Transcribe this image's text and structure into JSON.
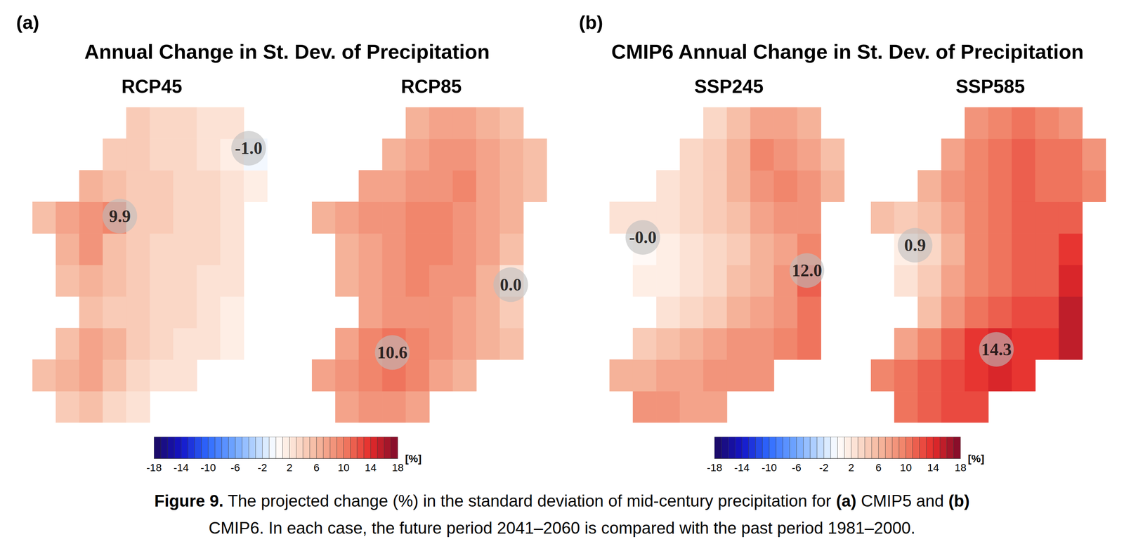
{
  "chart_data": [
    {
      "type": "heatmap",
      "label": "(a)",
      "title": "Annual Change in St. Dev. of Precipitation",
      "colorbar": {
        "range": [
          -18,
          18
        ],
        "ticks": [
          -18,
          -14,
          -10,
          -6,
          -2,
          2,
          6,
          10,
          14,
          18
        ],
        "levels": [
          -18,
          -17,
          -16,
          -15,
          -14,
          -13,
          -12,
          -11,
          -10,
          -9,
          -8,
          -7,
          -6,
          -5,
          -4,
          -3,
          -2,
          -1,
          0,
          1,
          2,
          3,
          4,
          5,
          6,
          7,
          8,
          9,
          10,
          11,
          12,
          13,
          14,
          15,
          16,
          17,
          18
        ],
        "label": "[%]"
      },
      "maps": [
        {
          "title": "RCP45",
          "lon": [
            -10.25,
            -9.75,
            -9.25,
            -8.75,
            -8.25,
            -7.75,
            -7.25,
            -6.75,
            -6.25,
            -5.75
          ],
          "lat": [
            51.6,
            52.0,
            52.4,
            52.8,
            53.2,
            53.6,
            54.0,
            54.4,
            54.8,
            55.2
          ],
          "cells": [
            [
              null,
              4,
              5,
              3,
              2,
              null,
              null,
              null,
              null,
              null
            ],
            [
              5,
              6,
              7,
              5,
              3,
              2,
              2,
              null,
              null,
              null
            ],
            [
              null,
              5,
              7,
              6,
              4,
              3,
              2,
              2,
              1,
              null
            ],
            [
              null,
              null,
              5,
              4,
              4,
              3,
              3,
              2,
              1,
              null
            ],
            [
              null,
              5,
              6,
              5,
              4,
              3,
              3,
              2,
              2,
              null
            ],
            [
              null,
              6,
              8,
              5,
              4,
              3,
              3,
              3,
              2,
              null
            ],
            [
              5,
              7,
              8,
              9,
              4,
              4,
              3,
              3,
              2,
              null
            ],
            [
              null,
              null,
              6,
              5,
              4,
              4,
              3,
              3,
              2,
              1
            ],
            [
              null,
              null,
              null,
              4,
              4,
              3,
              3,
              2,
              1,
              -1
            ],
            [
              null,
              null,
              null,
              null,
              4,
              3,
              3,
              2,
              2,
              null
            ]
          ],
          "markers": {
            "lon": [
              -5.9,
              -8.64
            ],
            "lat": [
              54.88,
              54.02
            ],
            "values": [
              -1.0,
              9.9
            ],
            "value_labels": [
              "-1.0",
              "9.9"
            ]
          }
        },
        {
          "title": "RCP85",
          "lon": [
            -10.25,
            -9.75,
            -9.25,
            -8.75,
            -8.25,
            -7.75,
            -7.25,
            -6.75,
            -6.25,
            -5.75
          ],
          "lat": [
            51.6,
            52.0,
            52.4,
            52.8,
            53.2,
            53.6,
            54.0,
            54.4,
            54.8,
            55.2
          ],
          "cells": [
            [
              null,
              7,
              8,
              8,
              7,
              null,
              null,
              null,
              null,
              null
            ],
            [
              7,
              8,
              9,
              10,
              9,
              7,
              6,
              null,
              null,
              null
            ],
            [
              null,
              7,
              9,
              10,
              9,
              8,
              7,
              6,
              5,
              null
            ],
            [
              null,
              null,
              7,
              8,
              8,
              8,
              7,
              6,
              4,
              null
            ],
            [
              null,
              6,
              7,
              8,
              9,
              8,
              8,
              6,
              2,
              null
            ],
            [
              null,
              6,
              7,
              8,
              9,
              9,
              8,
              7,
              5,
              null
            ],
            [
              6,
              7,
              8,
              8,
              9,
              9,
              8,
              7,
              6,
              null
            ],
            [
              null,
              null,
              7,
              7,
              8,
              8,
              9,
              7,
              6,
              5
            ],
            [
              null,
              null,
              null,
              6,
              7,
              8,
              8,
              7,
              6,
              5
            ],
            [
              null,
              null,
              null,
              null,
              6,
              7,
              7,
              6,
              5,
              null
            ]
          ],
          "markers": {
            "lon": [
              -6.27,
              -8.79
            ],
            "lat": [
              53.15,
              52.29
            ],
            "values": [
              0.0,
              10.6
            ],
            "value_labels": [
              "0.0",
              "10.6"
            ]
          }
        }
      ]
    },
    {
      "type": "heatmap",
      "label": "(b)",
      "title": "CMIP6 Annual Change in St. Dev. of Precipitation",
      "colorbar": {
        "range": [
          -18,
          18
        ],
        "ticks": [
          -18,
          -14,
          -10,
          -6,
          -2,
          2,
          6,
          10,
          14,
          18
        ],
        "levels": [
          -18,
          -17,
          -16,
          -15,
          -14,
          -13,
          -12,
          -11,
          -10,
          -9,
          -8,
          -7,
          -6,
          -5,
          -4,
          -3,
          -2,
          -1,
          0,
          1,
          2,
          3,
          4,
          5,
          6,
          7,
          8,
          9,
          10,
          11,
          12,
          13,
          14,
          15,
          16,
          17,
          18
        ],
        "label": "[%]"
      },
      "maps": [
        {
          "title": "SSP245",
          "lon": [
            -10.25,
            -9.75,
            -9.25,
            -8.75,
            -8.25,
            -7.75,
            -7.25,
            -6.75,
            -6.25,
            -5.75
          ],
          "lat": [
            51.6,
            52.0,
            52.4,
            52.8,
            53.2,
            53.6,
            54.0,
            54.4,
            54.8,
            55.2
          ],
          "cells": [
            [
              null,
              8,
              8,
              7,
              7,
              null,
              null,
              null,
              null,
              null
            ],
            [
              6,
              6,
              7,
              7,
              8,
              8,
              8,
              null,
              null,
              null
            ],
            [
              null,
              4,
              5,
              6,
              7,
              8,
              8,
              9,
              10,
              null
            ],
            [
              null,
              null,
              2,
              3,
              4,
              6,
              7,
              8,
              10,
              null
            ],
            [
              null,
              1,
              1,
              2,
              3,
              5,
              6,
              8,
              11,
              null
            ],
            [
              null,
              0,
              1,
              2,
              3,
              4,
              6,
              7,
              9,
              null
            ],
            [
              2,
              2,
              2,
              3,
              4,
              5,
              7,
              8,
              8,
              null
            ],
            [
              null,
              null,
              2,
              3,
              4,
              6,
              8,
              9,
              8,
              6
            ],
            [
              null,
              null,
              null,
              3,
              4,
              6,
              9,
              8,
              7,
              5
            ],
            [
              null,
              null,
              null,
              null,
              3,
              5,
              7,
              7,
              6,
              null
            ]
          ],
          "markers": {
            "lon": [
              -9.79,
              -6.3
            ],
            "lat": [
              53.75,
              53.33
            ],
            "values": [
              0.0,
              12.0
            ],
            "value_labels": [
              "-0.0",
              "12.0"
            ]
          }
        },
        {
          "title": "SSP585",
          "lon": [
            -10.25,
            -9.75,
            -9.25,
            -8.75,
            -8.25,
            -7.75,
            -7.25,
            -6.75,
            -6.25,
            -5.75
          ],
          "lat": [
            51.6,
            52.0,
            52.4,
            52.8,
            53.2,
            53.6,
            54.0,
            54.4,
            54.8,
            55.2
          ],
          "cells": [
            [
              null,
              10,
              11,
              12,
              12,
              null,
              null,
              null,
              null,
              null
            ],
            [
              9,
              10,
              11,
              12,
              13,
              14,
              13,
              null,
              null,
              null
            ],
            [
              null,
              7,
              9,
              11,
              13,
              14,
              13,
              13,
              15,
              null
            ],
            [
              null,
              null,
              5,
              8,
              10,
              11,
              12,
              12,
              15,
              null
            ],
            [
              null,
              2,
              4,
              7,
              9,
              10,
              11,
              11,
              14,
              null
            ],
            [
              null,
              1,
              3,
              6,
              9,
              10,
              11,
              11,
              13,
              null
            ],
            [
              5,
              4,
              5,
              7,
              9,
              10,
              11,
              11,
              11,
              null
            ],
            [
              null,
              null,
              6,
              8,
              9,
              10,
              11,
              10,
              10,
              9
            ],
            [
              null,
              null,
              null,
              7,
              9,
              10,
              11,
              10,
              10,
              8
            ],
            [
              null,
              null,
              null,
              null,
              8,
              9,
              10,
              9,
              8,
              null
            ]
          ],
          "markers": {
            "lon": [
              -9.56,
              -7.83
            ],
            "lat": [
              53.65,
              52.33
            ],
            "values": [
              0.9,
              14.3
            ],
            "value_labels": [
              "0.9",
              "14.3"
            ]
          }
        }
      ]
    }
  ],
  "caption": [
    "Figure 9. The projected change (%) in the standard deviation of mid-century precipitation for (a) CMIP5 and (b)",
    "CMIP6. In each case, the future period 2041–2060 is compared with the past period 1981–2000."
  ]
}
